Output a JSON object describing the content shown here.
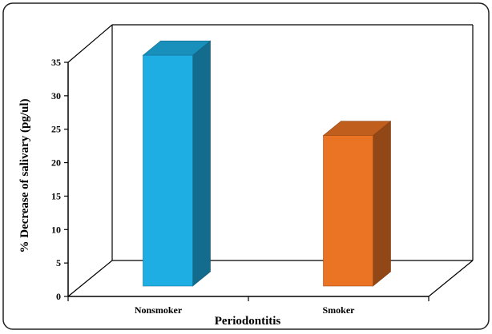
{
  "chart_data": {
    "type": "bar",
    "categories": [
      "Nonsmoker",
      "Smoker"
    ],
    "values": [
      34.5,
      22.5
    ],
    "ylabel": "% Decrease of salivary (pg/ul)",
    "xlabel": "Periodontitis",
    "ylim": [
      0,
      35
    ],
    "yticks": [
      "0",
      "5",
      "10",
      "15",
      "20",
      "25",
      "30",
      "35"
    ],
    "grid": false,
    "bar_colors": [
      "#1EAEE4",
      "#EA7324"
    ]
  }
}
